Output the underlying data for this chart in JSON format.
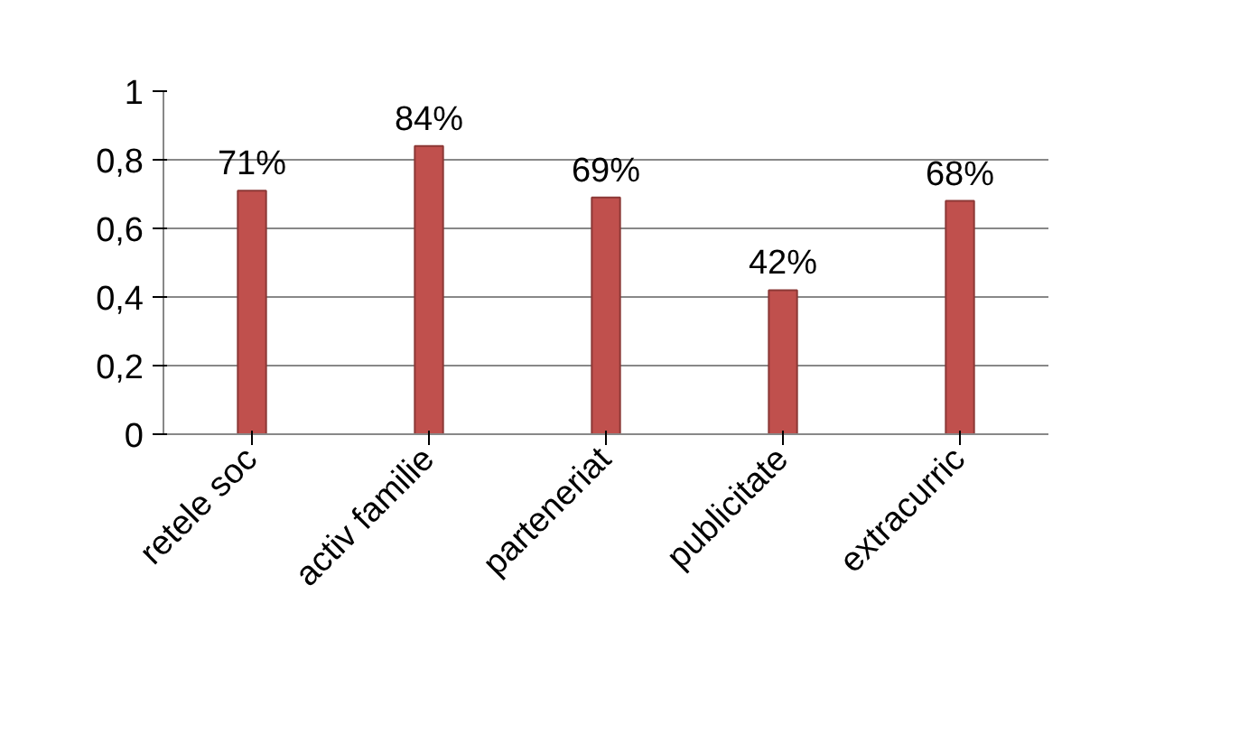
{
  "chart_data": {
    "type": "bar",
    "categories": [
      "retele soc",
      "activ familie",
      "parteneriat",
      "publicitate",
      "extracurric"
    ],
    "values": [
      0.71,
      0.84,
      0.69,
      0.42,
      0.68
    ],
    "value_labels": [
      "71%",
      "84%",
      "69%",
      "42%",
      "68%"
    ],
    "color": "#c0504d",
    "ylim": [
      0,
      1
    ],
    "yticks": [
      0,
      {
        "value": 0.2,
        "label": "0,2"
      },
      {
        "value": 0.4,
        "label": "0,4"
      },
      {
        "value": 0.6,
        "label": "0,6"
      },
      {
        "value": 0.8,
        "label": "0,8"
      },
      1
    ],
    "grid": "y"
  }
}
